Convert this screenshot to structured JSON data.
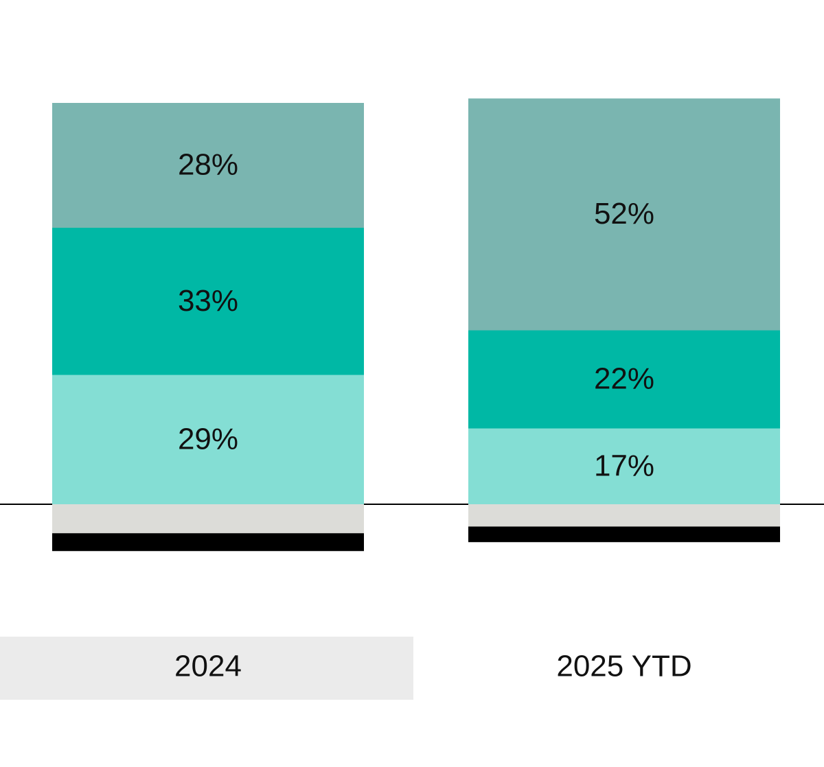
{
  "chart_data": {
    "type": "stacked_bar",
    "categories": [
      "2024",
      "2025 YTD"
    ],
    "series": [
      {
        "color": "#84ded4",
        "values": [
          29,
          17
        ],
        "value_labels": [
          "29%",
          "17%"
        ]
      },
      {
        "color": "#00b8a5",
        "values": [
          33,
          22
        ],
        "value_labels": [
          "33%",
          "22%"
        ]
      },
      {
        "color": "#7ab5b0",
        "values": [
          28,
          52
        ],
        "value_labels": [
          "28%",
          "52%"
        ]
      },
      {
        "color": "#dcdcd8",
        "values": [
          -6.5,
          -5
        ]
      },
      {
        "color": "#000000",
        "values": [
          -4,
          -3.5
        ]
      }
    ]
  }
}
